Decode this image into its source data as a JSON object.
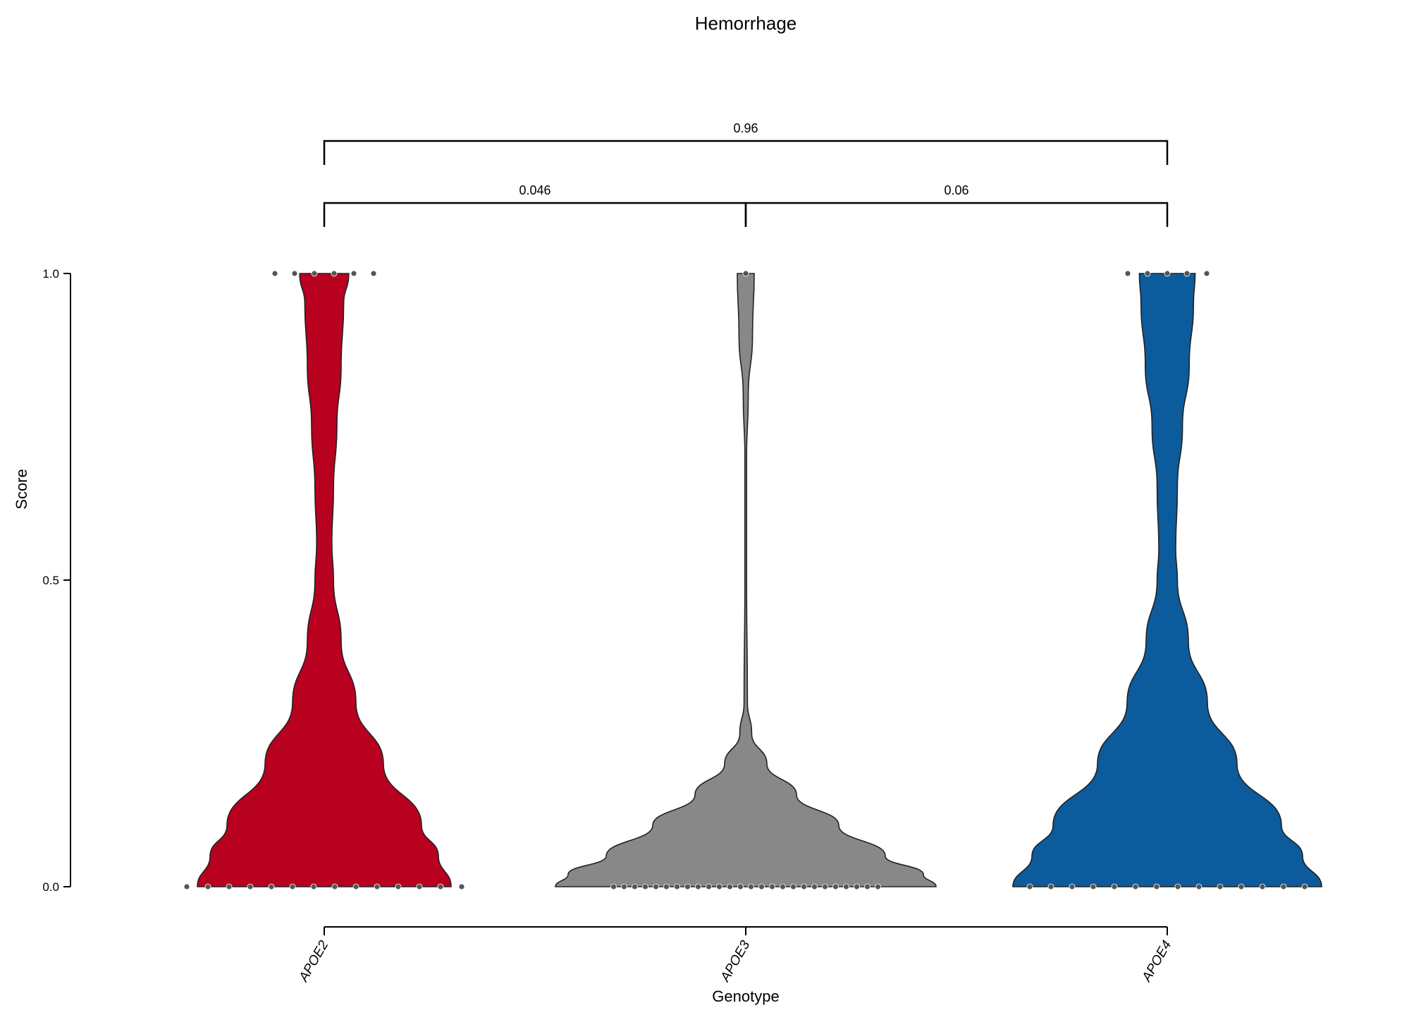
{
  "chart_data": {
    "type": "violin",
    "title": "Hemorrhage",
    "xlabel": "Genotype",
    "ylabel": "Score",
    "ylim": [
      0,
      1
    ],
    "yticks": [
      0.0,
      0.5,
      1.0
    ],
    "ytick_labels": [
      "0.0",
      "0.5",
      "1.0"
    ],
    "categories": [
      "APOE2",
      "APOE3",
      "APOE4"
    ],
    "colors": {
      "APOE2": "#b8001f",
      "APOE3": "#888888",
      "APOE4": "#0c5b9c"
    },
    "dot_color": "#555555",
    "grid": false,
    "series": [
      {
        "category": "APOE2",
        "points_at_0": 14,
        "points_at_1": 6,
        "density": [
          [
            0.0,
            0.3
          ],
          [
            0.05,
            0.27
          ],
          [
            0.1,
            0.23
          ],
          [
            0.2,
            0.14
          ],
          [
            0.3,
            0.075
          ],
          [
            0.4,
            0.04
          ],
          [
            0.5,
            0.022
          ],
          [
            0.56,
            0.018
          ],
          [
            0.65,
            0.022
          ],
          [
            0.75,
            0.03
          ],
          [
            0.85,
            0.04
          ],
          [
            0.95,
            0.046
          ],
          [
            1.0,
            0.058
          ]
        ]
      },
      {
        "category": "APOE3",
        "points_at_0": 26,
        "points_at_1": 1,
        "density": [
          [
            0.0,
            0.45
          ],
          [
            0.02,
            0.42
          ],
          [
            0.05,
            0.33
          ],
          [
            0.1,
            0.22
          ],
          [
            0.15,
            0.12
          ],
          [
            0.2,
            0.05
          ],
          [
            0.25,
            0.014
          ],
          [
            0.3,
            0.004
          ],
          [
            0.5,
            0.002
          ],
          [
            0.7,
            0.002
          ],
          [
            0.8,
            0.006
          ],
          [
            0.9,
            0.016
          ],
          [
            1.0,
            0.02
          ]
        ]
      },
      {
        "category": "APOE4",
        "points_at_0": 14,
        "points_at_1": 5,
        "density": [
          [
            0.0,
            0.365
          ],
          [
            0.05,
            0.32
          ],
          [
            0.1,
            0.27
          ],
          [
            0.2,
            0.165
          ],
          [
            0.3,
            0.095
          ],
          [
            0.4,
            0.05
          ],
          [
            0.5,
            0.024
          ],
          [
            0.55,
            0.02
          ],
          [
            0.65,
            0.024
          ],
          [
            0.75,
            0.036
          ],
          [
            0.85,
            0.052
          ],
          [
            0.95,
            0.062
          ],
          [
            1.0,
            0.066
          ]
        ]
      }
    ],
    "comparisons": [
      {
        "groups": [
          "APOE2",
          "APOE3"
        ],
        "p_label": "0.046",
        "level": 1
      },
      {
        "groups": [
          "APOE3",
          "APOE4"
        ],
        "p_label": "0.06",
        "level": 1
      },
      {
        "groups": [
          "APOE2",
          "APOE4"
        ],
        "p_label": "0.96",
        "level": 2
      }
    ]
  }
}
